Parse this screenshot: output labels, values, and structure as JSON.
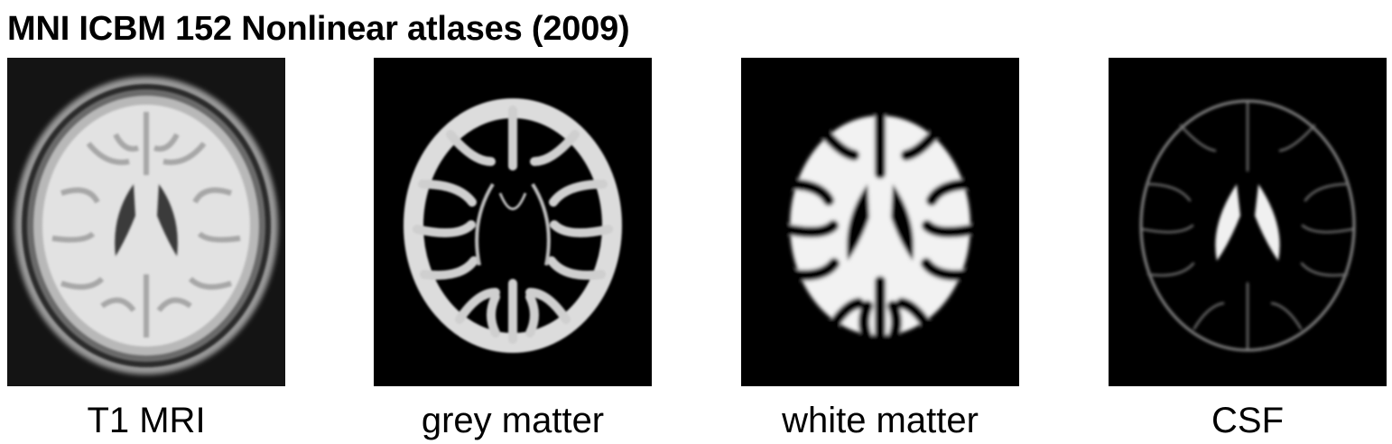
{
  "title": "MNI ICBM 152 Nonlinear atlases (2009)",
  "panels": [
    {
      "id": "t1",
      "caption": "T1 MRI"
    },
    {
      "id": "grey",
      "caption": "grey matter"
    },
    {
      "id": "white",
      "caption": "white matter"
    },
    {
      "id": "csf",
      "caption": "CSF"
    }
  ],
  "colors": {
    "background": "#ffffff",
    "panel_black": "#000000",
    "t1_background": "#141414"
  }
}
